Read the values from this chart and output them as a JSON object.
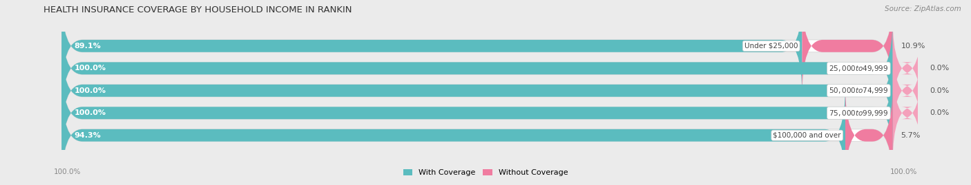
{
  "title": "HEALTH INSURANCE COVERAGE BY HOUSEHOLD INCOME IN RANKIN",
  "source": "Source: ZipAtlas.com",
  "categories": [
    "Under $25,000",
    "$25,000 to $49,999",
    "$50,000 to $74,999",
    "$75,000 to $99,999",
    "$100,000 and over"
  ],
  "with_coverage": [
    89.1,
    100.0,
    100.0,
    100.0,
    94.3
  ],
  "without_coverage": [
    10.9,
    0.0,
    0.0,
    0.0,
    5.7
  ],
  "without_coverage_display": [
    10.9,
    0.0,
    0.0,
    0.0,
    5.7
  ],
  "color_with": "#5bbcbf",
  "color_without": "#f4a0bb",
  "color_without_bright": "#f07ca0",
  "bg_color": "#ebebeb",
  "bar_bg": "#ffffff",
  "title_fontsize": 9.5,
  "label_fontsize": 8.0,
  "tick_fontsize": 7.5,
  "legend_fontsize": 8.0,
  "bar_height": 0.55,
  "x_left_label": "100.0%",
  "x_right_label": "100.0%"
}
